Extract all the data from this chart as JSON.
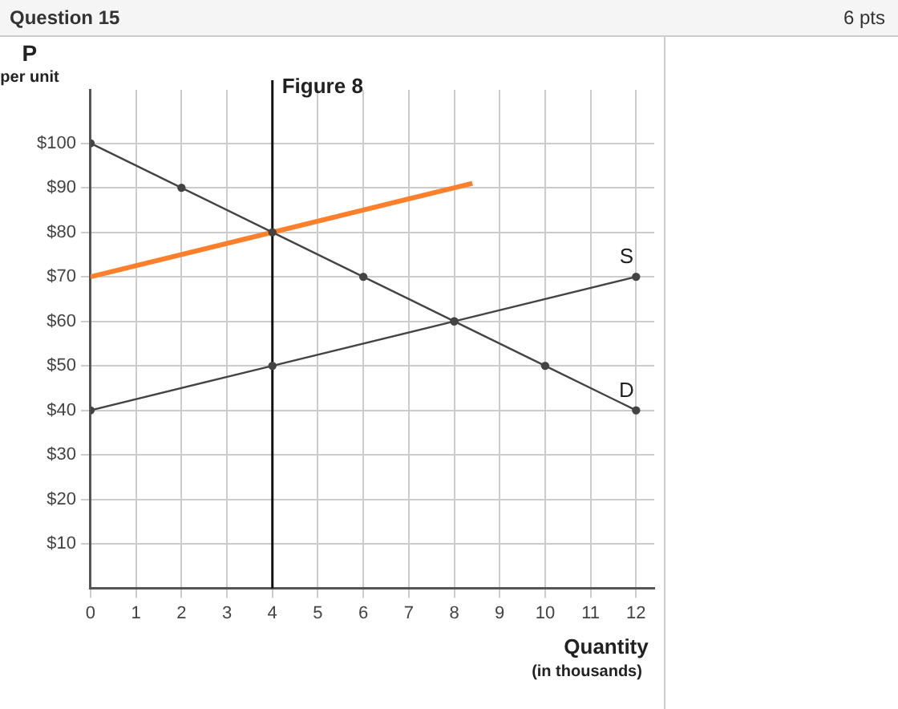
{
  "chart_data": {
    "type": "line",
    "title": "Figure 8",
    "xlabel": "Quantity (in thousands)",
    "ylabel": "P per unit",
    "annotations": [
      "Question 15",
      "6 pts"
    ],
    "xlim": [
      0,
      12.4
    ],
    "ylim": [
      0,
      112
    ],
    "xticks": [
      0,
      1,
      2,
      3,
      4,
      5,
      6,
      7,
      8,
      9,
      10,
      11,
      12
    ],
    "yticks": [
      {
        "value": 10,
        "label": "$10"
      },
      {
        "value": 20,
        "label": "$20"
      },
      {
        "value": 30,
        "label": "$30"
      },
      {
        "value": 40,
        "label": "$40"
      },
      {
        "value": 50,
        "label": "$50"
      },
      {
        "value": 60,
        "label": "$60"
      },
      {
        "value": 70,
        "label": "$70"
      },
      {
        "value": 80,
        "label": "$80"
      },
      {
        "value": 90,
        "label": "$90"
      },
      {
        "value": 100,
        "label": "$100"
      }
    ],
    "grid": true,
    "legend": false,
    "line_style": "solid",
    "ref_lines": [
      {
        "axis": "x",
        "value": 4,
        "color": "#111111"
      }
    ],
    "series": [
      {
        "name": "D",
        "color": "#444444",
        "marker": "circle",
        "x": [
          0,
          2,
          4,
          6,
          8,
          10,
          12
        ],
        "values": [
          100,
          90,
          80,
          70,
          60,
          50,
          40
        ]
      },
      {
        "name": "S",
        "color": "#444444",
        "marker": "circle",
        "x": [
          0,
          4,
          8,
          12
        ],
        "values": [
          40,
          50,
          60,
          70
        ]
      },
      {
        "color": "#ff7f2a",
        "marker": "none",
        "x": [
          0,
          8.4
        ],
        "values": [
          70,
          91
        ]
      }
    ]
  }
}
